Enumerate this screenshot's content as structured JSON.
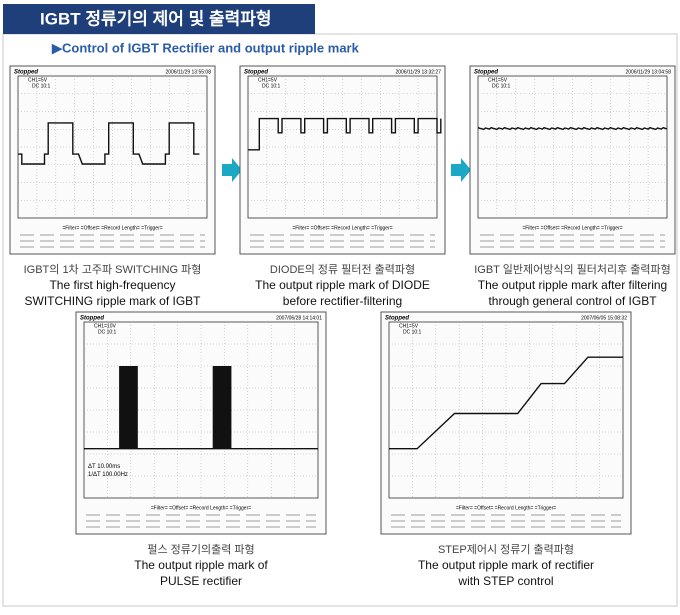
{
  "header": {
    "title": "IGBT 정류기의 제어 및 출력파형",
    "subtitle": "▶Control of IGBT Rectifier and output ripple mark"
  },
  "panels": [
    {
      "scope": {
        "status": "Stopped",
        "timestamp": "2006/11/29 13:55:08",
        "channel": "CH1=5V",
        "coupling": "DC 10:1",
        "footer": "=Filter=   =Offset=   =Record Length=   =Trigger="
      },
      "caption": [
        "IGBT의 1차 고주파 SWITCHING 파형",
        "The first high-frequency",
        "SWITCHING ripple mark of IGBT"
      ]
    },
    {
      "scope": {
        "status": "Stopped",
        "timestamp": "2006/11/29 13:32:27",
        "channel": "CH1=5V",
        "coupling": "DC 10:1",
        "footer": "=Filter=   =Offset=   =Record Length=   =Trigger="
      },
      "caption": [
        "DIODE의  정류 필터전 출력파형",
        "The output ripple mark of DIODE",
        "before rectifier-filtering"
      ]
    },
    {
      "scope": {
        "status": "Stopped",
        "timestamp": "2006/11/29 13:04:58",
        "channel": "CH1=5V",
        "coupling": "DC 10:1",
        "footer": "=Filter=   =Offset=   =Record Length=   =Trigger="
      },
      "caption": [
        "IGBT 일반제어방식의 필터처리후 출력파형",
        "The output ripple mark after filtering",
        "through general control of IGBT"
      ]
    },
    {
      "scope": {
        "status": "Stopped",
        "timestamp": "2007/06/28 14:14:01",
        "channel": "CH1=10V",
        "coupling": "DC 10:1",
        "footer": "=Filter=   =Offset=   =Record Length=   =Trigger=",
        "readout": [
          "ΔT   10.00ms",
          "1/ΔT  100.00Hz"
        ]
      },
      "caption": [
        "펄스 정류기의출력 파형",
        "The output ripple mark of",
        "PULSE rectifier"
      ]
    },
    {
      "scope": {
        "status": "Stopped",
        "timestamp": "2007/06/05 15:08:32",
        "channel": "CH1=5V",
        "coupling": "DC 10:1",
        "footer": "=Filter=   =Offset=   =Record Length=   =Trigger="
      },
      "caption": [
        "STEP제어시 정류기 출력파형",
        "The output ripple mark of rectifier",
        "with STEP control"
      ]
    }
  ]
}
